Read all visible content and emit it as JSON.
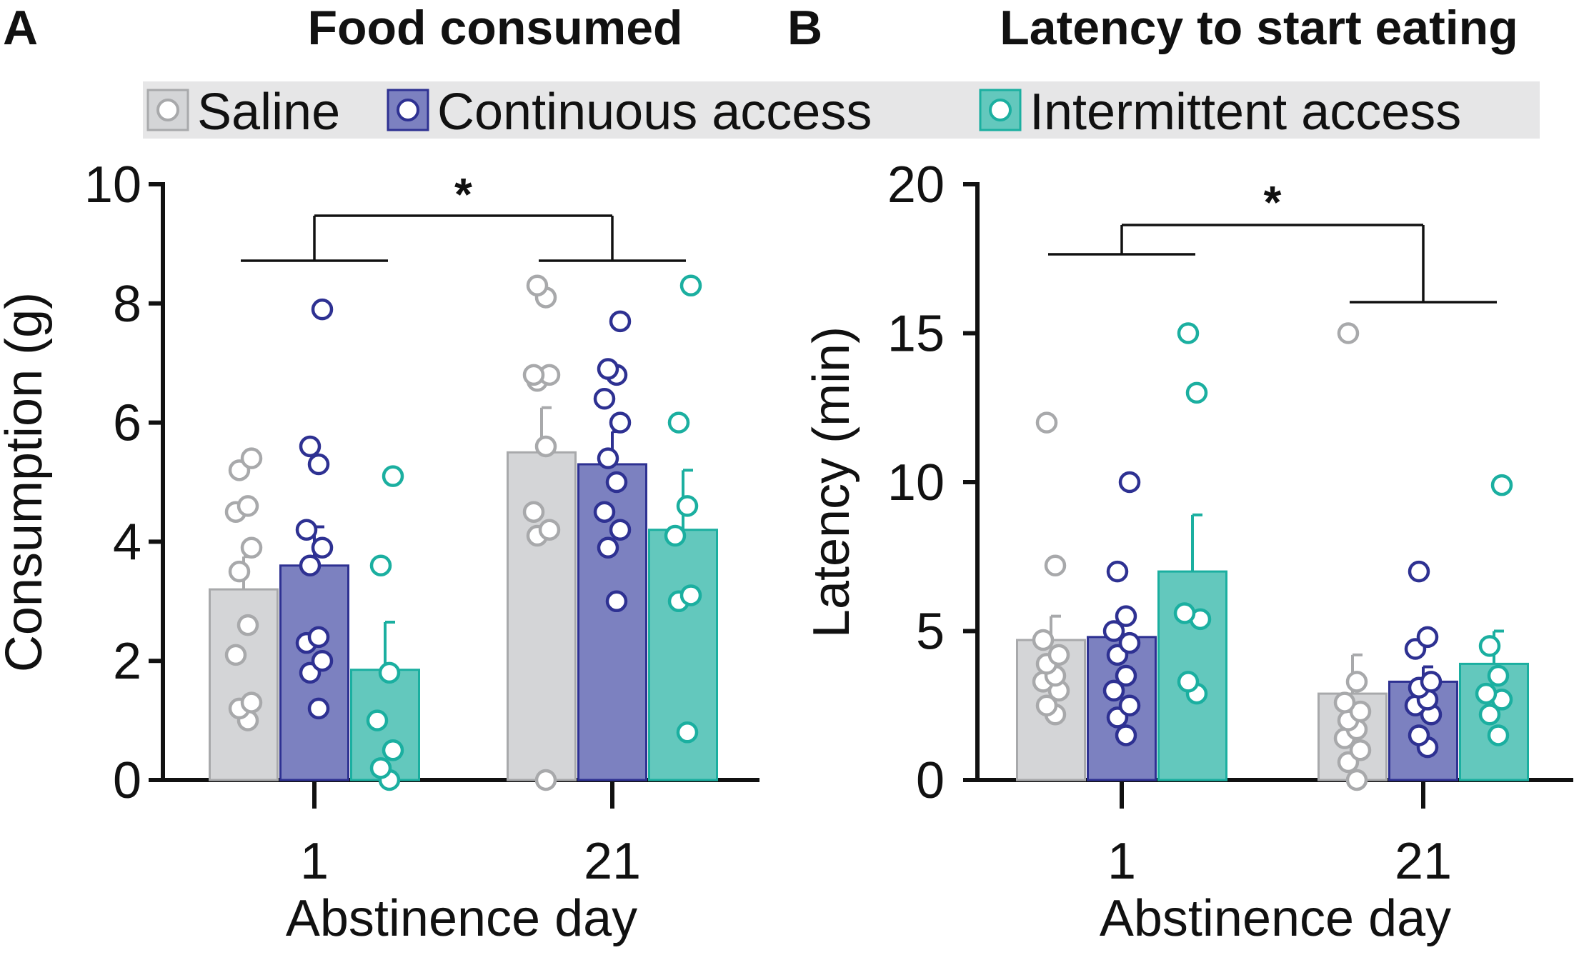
{
  "legend": [
    {
      "label": "Saline",
      "color": "#a8a9ab",
      "fill": "#d4d5d7"
    },
    {
      "label": "Continuous access",
      "color": "#2e3192",
      "fill": "#7c81c0"
    },
    {
      "label": "Intermittent access",
      "color": "#1bafa0",
      "fill": "#63c8bd"
    }
  ],
  "chart_data": [
    {
      "panel": "A",
      "type": "bar",
      "title": "Food consumed",
      "xlabel": "Abstinence day",
      "ylabel": "Consumption (g)",
      "ylim": [
        0,
        10
      ],
      "yticks": [
        "0",
        "2",
        "4",
        "6",
        "8",
        "10"
      ],
      "categories": [
        "1",
        "21"
      ],
      "series": [
        {
          "name": "Saline",
          "values": [
            3.2,
            5.5
          ],
          "sem": [
            0.55,
            0.75
          ],
          "points": [
            [
              1.0,
              1.2,
              1.3,
              2.1,
              2.6,
              3.5,
              3.9,
              4.5,
              4.6,
              5.2,
              5.4
            ],
            [
              0.0,
              4.1,
              4.2,
              4.5,
              5.6,
              6.7,
              6.8,
              6.8,
              8.1,
              8.3
            ]
          ]
        },
        {
          "name": "Continuous access",
          "values": [
            3.6,
            5.3
          ],
          "sem": [
            0.65,
            0.55
          ],
          "points": [
            [
              1.2,
              1.8,
              2.0,
              2.3,
              2.4,
              3.6,
              3.9,
              4.2,
              5.3,
              5.6,
              7.9
            ],
            [
              3.0,
              3.9,
              4.2,
              4.5,
              5.0,
              5.4,
              6.0,
              6.4,
              6.8,
              6.9,
              7.7
            ]
          ]
        },
        {
          "name": "Intermittent access",
          "values": [
            1.85,
            4.2
          ],
          "sem": [
            0.8,
            1.0
          ],
          "points": [
            [
              0.0,
              0.2,
              0.5,
              1.0,
              1.8,
              3.6,
              5.1
            ],
            [
              0.8,
              3.0,
              3.1,
              4.1,
              4.6,
              6.0,
              8.3
            ]
          ]
        }
      ],
      "annotations": [
        {
          "text": "*",
          "comparison": "day 1 vs day 21"
        }
      ]
    },
    {
      "panel": "B",
      "type": "bar",
      "title": "Latency to start eating",
      "xlabel": "Abstinence day",
      "ylabel": "Latency (min)",
      "ylim": [
        0,
        20
      ],
      "yticks": [
        "0",
        "5",
        "10",
        "15",
        "20"
      ],
      "categories": [
        "1",
        "21"
      ],
      "series": [
        {
          "name": "Saline",
          "values": [
            4.7,
            2.9
          ],
          "sem": [
            0.8,
            1.3
          ],
          "points": [
            [
              2.2,
              2.5,
              3.0,
              3.3,
              3.5,
              3.9,
              4.2,
              4.7,
              7.2,
              12.0
            ],
            [
              0.0,
              0.6,
              1.0,
              1.4,
              1.7,
              2.0,
              2.3,
              2.6,
              3.3,
              15.0
            ]
          ]
        },
        {
          "name": "Continuous access",
          "values": [
            4.8,
            3.3
          ],
          "sem": [
            0.7,
            0.5
          ],
          "points": [
            [
              1.5,
              2.1,
              2.5,
              3.0,
              3.5,
              4.2,
              4.6,
              5.0,
              5.5,
              7.0,
              10.0
            ],
            [
              1.1,
              1.5,
              2.2,
              2.5,
              2.7,
              3.1,
              3.3,
              4.4,
              4.8,
              7.0
            ]
          ]
        },
        {
          "name": "Intermittent access",
          "values": [
            7.0,
            3.9
          ],
          "sem": [
            1.9,
            1.1
          ],
          "points": [
            [
              2.9,
              3.3,
              5.4,
              5.6,
              13.0,
              15.0
            ],
            [
              1.5,
              2.2,
              2.7,
              2.9,
              3.5,
              4.5,
              9.9
            ]
          ]
        }
      ],
      "annotations": [
        {
          "text": "*",
          "comparison": "day 1 vs day 21"
        }
      ]
    }
  ]
}
